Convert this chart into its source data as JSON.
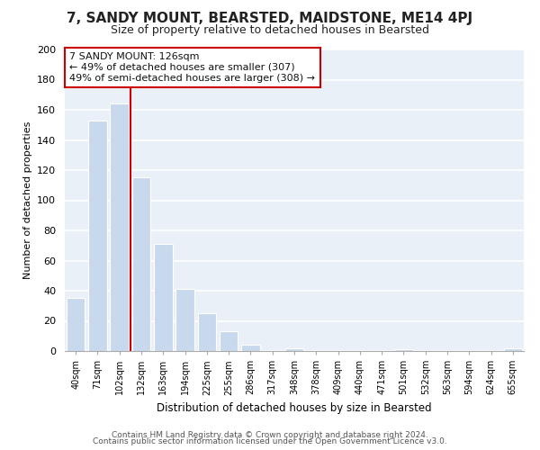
{
  "title": "7, SANDY MOUNT, BEARSTED, MAIDSTONE, ME14 4PJ",
  "subtitle": "Size of property relative to detached houses in Bearsted",
  "xlabel": "Distribution of detached houses by size in Bearsted",
  "ylabel": "Number of detached properties",
  "bar_labels": [
    "40sqm",
    "71sqm",
    "102sqm",
    "132sqm",
    "163sqm",
    "194sqm",
    "225sqm",
    "255sqm",
    "286sqm",
    "317sqm",
    "348sqm",
    "378sqm",
    "409sqm",
    "440sqm",
    "471sqm",
    "501sqm",
    "532sqm",
    "563sqm",
    "594sqm",
    "624sqm",
    "655sqm"
  ],
  "bar_values": [
    35,
    153,
    164,
    115,
    71,
    41,
    25,
    13,
    4,
    0,
    2,
    0,
    0,
    0,
    0,
    1,
    0,
    0,
    0,
    0,
    2
  ],
  "bar_color": "#c8d9ed",
  "bar_edge_color": "#ffffff",
  "marker_line_color": "#cc0000",
  "annotation_line0": "7 SANDY MOUNT: 126sqm",
  "annotation_line1": "← 49% of detached houses are smaller (307)",
  "annotation_line2": "49% of semi-detached houses are larger (308) →",
  "annotation_box_color": "#ffffff",
  "annotation_box_edge": "#cc0000",
  "ylim": [
    0,
    200
  ],
  "yticks": [
    0,
    20,
    40,
    60,
    80,
    100,
    120,
    140,
    160,
    180,
    200
  ],
  "footer1": "Contains HM Land Registry data © Crown copyright and database right 2024.",
  "footer2": "Contains public sector information licensed under the Open Government Licence v3.0.",
  "bg_color": "#ffffff",
  "plot_bg_color": "#eaf0f8"
}
